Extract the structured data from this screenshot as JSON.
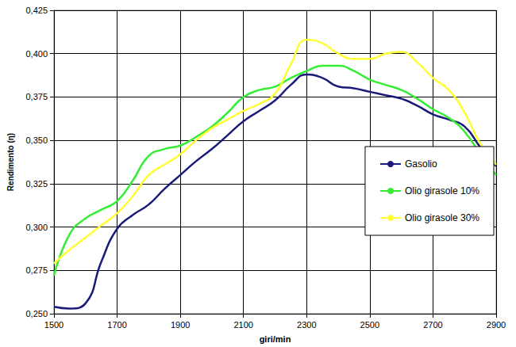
{
  "chart_data": {
    "type": "line",
    "x_label": "giri/min",
    "y_label": "Rendimento (η)",
    "x": [
      1500,
      1550,
      1600,
      1650,
      1700,
      1750,
      1800,
      1850,
      1900,
      1950,
      2000,
      2050,
      2100,
      2150,
      2200,
      2250,
      2300,
      2350,
      2400,
      2450,
      2500,
      2550,
      2600,
      2650,
      2700,
      2750,
      2800,
      2850,
      2900
    ],
    "series": [
      {
        "name": "Gasolio",
        "color": "#1a1a7a",
        "values": [
          0.254,
          0.253,
          0.256,
          0.28,
          0.299,
          0.307,
          0.313,
          0.322,
          0.33,
          0.338,
          0.345,
          0.353,
          0.361,
          0.367,
          0.373,
          0.382,
          0.388,
          0.386,
          0.381,
          0.38,
          0.378,
          0.376,
          0.374,
          0.37,
          0.365,
          0.362,
          0.358,
          0.346,
          0.335
        ]
      },
      {
        "name": "Olio girasole 10%",
        "color": "#33ee33",
        "values": [
          0.272,
          0.296,
          0.305,
          0.31,
          0.315,
          0.327,
          0.341,
          0.345,
          0.347,
          0.352,
          0.358,
          0.366,
          0.375,
          0.379,
          0.381,
          0.386,
          0.39,
          0.393,
          0.393,
          0.39,
          0.385,
          0.382,
          0.379,
          0.374,
          0.368,
          0.363,
          0.355,
          0.342,
          0.33
        ]
      },
      {
        "name": "Olio girasole 30%",
        "color": "#ffff33",
        "values": [
          0.279,
          0.287,
          0.294,
          0.301,
          0.308,
          0.318,
          0.33,
          0.336,
          0.342,
          0.35,
          0.357,
          0.362,
          0.367,
          0.371,
          0.377,
          0.394,
          0.408,
          0.406,
          0.4,
          0.397,
          0.397,
          0.4,
          0.401,
          0.395,
          0.386,
          0.379,
          0.366,
          0.348,
          0.336
        ]
      }
    ],
    "xlim": [
      1500,
      2900
    ],
    "xticks": [
      1500,
      1700,
      1900,
      2100,
      2300,
      2500,
      2700,
      2900
    ],
    "ylim": [
      0.25,
      0.425
    ],
    "yticks": [
      {
        "value": 0.25,
        "label": "0,250"
      },
      {
        "value": 0.275,
        "label": "0,275"
      },
      {
        "value": 0.3,
        "label": "0,300"
      },
      {
        "value": 0.325,
        "label": "0,325"
      },
      {
        "value": 0.35,
        "label": "0,350"
      },
      {
        "value": 0.375,
        "label": "0,375"
      },
      {
        "value": 0.4,
        "label": "0,400"
      },
      {
        "value": 0.425,
        "label": "0,425"
      }
    ],
    "grid": true,
    "legend": "right"
  }
}
